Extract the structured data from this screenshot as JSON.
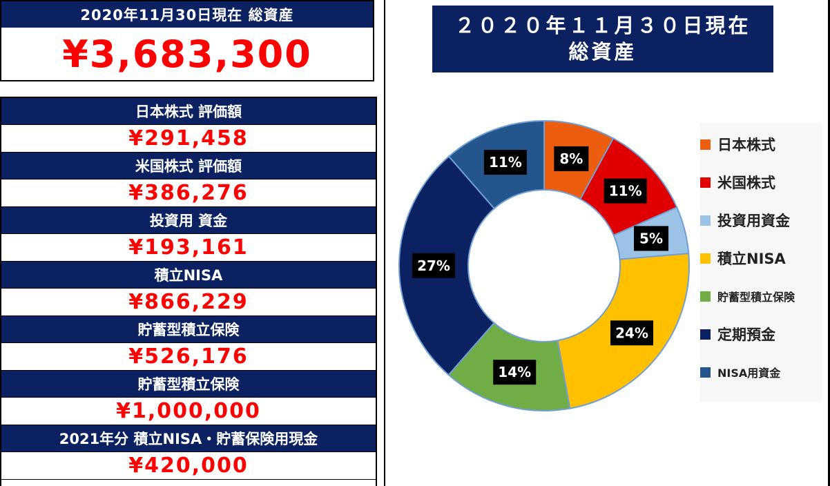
{
  "summary": {
    "header": "2020年11月30日現在 総資産",
    "total": "¥3,683,300"
  },
  "items": [
    {
      "label": "日本株式 評価額",
      "value": "¥291,458"
    },
    {
      "label": "米国株式 評価額",
      "value": "¥386,276"
    },
    {
      "label": "投資用 資金",
      "value": "¥193,161"
    },
    {
      "label": "積立NISA",
      "value": "¥866,229"
    },
    {
      "label": "貯蓄型積立保険",
      "value": "¥526,176"
    },
    {
      "label": "貯蓄型積立保険",
      "value": "¥1,000,000"
    },
    {
      "label": "2021年分 積立NISA・貯蓄保険用現金",
      "value": "¥420,000"
    }
  ],
  "chart_title_line1": "２０２０年１１月３０日現在",
  "chart_title_line2": "総資産",
  "chart_data": {
    "type": "pie",
    "variant": "donut",
    "title": "２０２０年１１月３０日現在 総資産",
    "legend_position": "right",
    "categories": [
      "日本株式",
      "米国株式",
      "投資用資金",
      "積立NISA",
      "貯蓄型積立保険",
      "定期預金",
      "NISA用資金"
    ],
    "values": [
      291458,
      386276,
      193161,
      866229,
      526176,
      1000000,
      420000
    ],
    "labels": [
      "8%",
      "11%",
      "5%",
      "24%",
      "14%",
      "27%",
      "11%"
    ],
    "colors": [
      "#ed5d10",
      "#e00000",
      "#9cc3e6",
      "#ffc000",
      "#70ad47",
      "#0b2161",
      "#24558c"
    ]
  }
}
